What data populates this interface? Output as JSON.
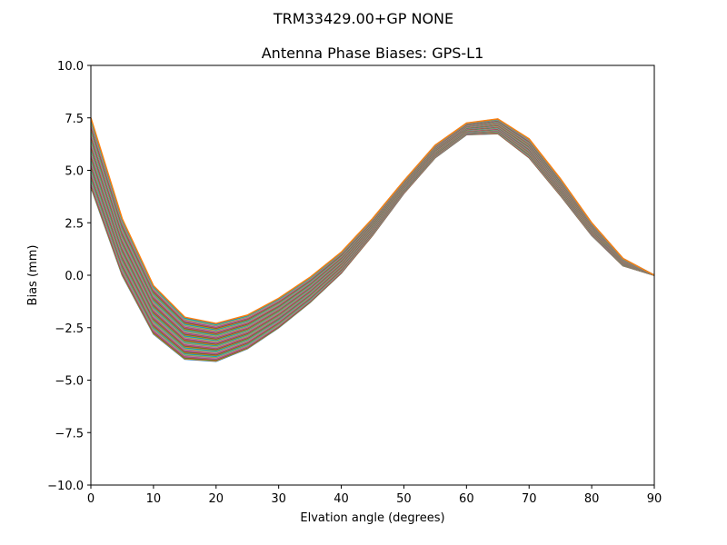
{
  "chart_data": {
    "type": "line",
    "suptitle": "TRM33429.00+GP  NONE",
    "title": "Antenna Phase Biases: GPS-L1",
    "xlabel": "Elvation angle (degrees)",
    "ylabel": "Bias (mm)",
    "xlim": [
      0,
      90
    ],
    "ylim": [
      -10,
      10
    ],
    "xticks": [
      0,
      10,
      20,
      30,
      40,
      50,
      60,
      70,
      80,
      90
    ],
    "xtick_labels": [
      "0",
      "10",
      "20",
      "30",
      "40",
      "50",
      "60",
      "70",
      "80",
      "90"
    ],
    "yticks": [
      -10,
      -7.5,
      -5,
      -2.5,
      0,
      2.5,
      5,
      7.5,
      10
    ],
    "ytick_labels": [
      "−10.0",
      "−7.5",
      "−5.0",
      "−2.5",
      "0.0",
      "2.5",
      "5.0",
      "7.5",
      "10.0"
    ],
    "grid": false,
    "legend": "none",
    "x": [
      0,
      5,
      10,
      15,
      20,
      25,
      30,
      35,
      40,
      45,
      50,
      55,
      60,
      65,
      70,
      75,
      80,
      85,
      90
    ],
    "envelope_upper": [
      7.5,
      2.7,
      -0.5,
      -2.0,
      -2.3,
      -1.9,
      -1.1,
      -0.1,
      1.1,
      2.7,
      4.5,
      6.2,
      7.25,
      7.45,
      6.5,
      4.6,
      2.5,
      0.8,
      0.0
    ],
    "envelope_lower": [
      4.2,
      0.0,
      -2.8,
      -4.0,
      -4.1,
      -3.5,
      -2.5,
      -1.3,
      0.1,
      1.9,
      3.9,
      5.6,
      6.7,
      6.75,
      5.6,
      3.8,
      1.9,
      0.45,
      0.0
    ],
    "series_count": 72,
    "series_colors": [
      "#1f77b4",
      "#ff7f0e",
      "#2ca02c",
      "#d62728",
      "#9467bd",
      "#8c564b",
      "#e377c2",
      "#7f7f7f",
      "#bcbd22",
      "#17becf"
    ]
  }
}
